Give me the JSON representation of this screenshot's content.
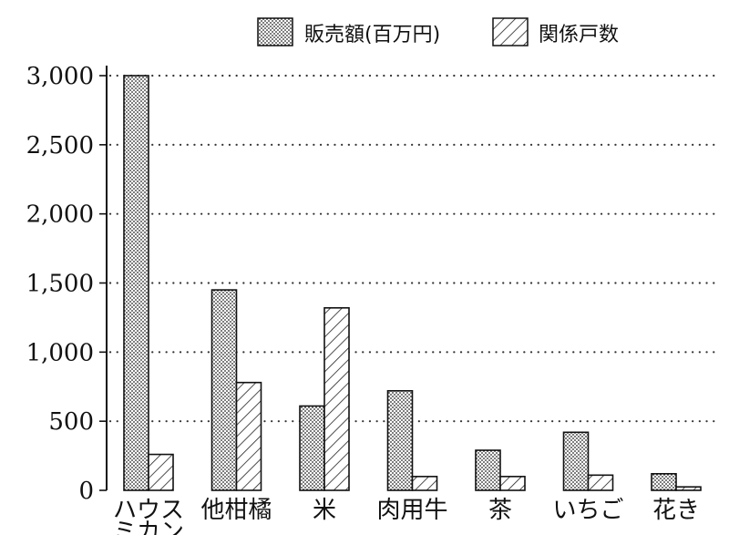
{
  "chart_data": {
    "type": "bar",
    "categories": [
      "ハウスミカン",
      "他柑橘",
      "米",
      "肉用牛",
      "茶",
      "いちご",
      "花き"
    ],
    "category_lines": [
      [
        "ハウス",
        "ミカン"
      ],
      [
        "他柑橘"
      ],
      [
        "米"
      ],
      [
        "肉用牛"
      ],
      [
        "茶"
      ],
      [
        "いちご"
      ],
      [
        "花き"
      ]
    ],
    "series": [
      {
        "name": "販売額(百万円)",
        "pattern": "dots",
        "values": [
          3000,
          1450,
          610,
          720,
          290,
          420,
          120
        ]
      },
      {
        "name": "関係戸数",
        "pattern": "hatch",
        "values": [
          260,
          780,
          1320,
          100,
          100,
          110,
          25
        ]
      }
    ],
    "ylim": [
      0,
      3000
    ],
    "yticks": [
      "0",
      "500",
      "1,000",
      "1,500",
      "2,000",
      "2,500",
      "3,000"
    ],
    "ytick_values": [
      0,
      500,
      1000,
      1500,
      2000,
      2500,
      3000
    ],
    "grid": "dotted horizontal",
    "legend_position": "top"
  }
}
